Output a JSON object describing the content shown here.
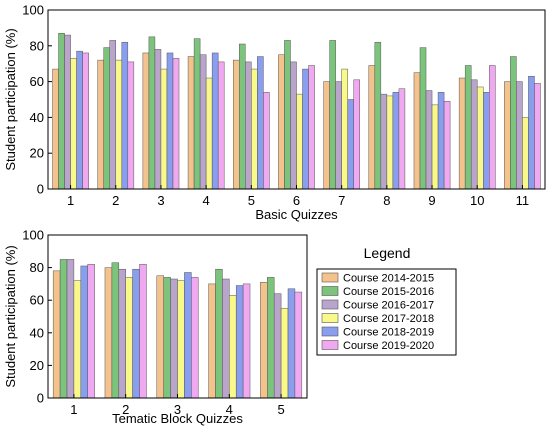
{
  "colors": [
    "#f4c28c",
    "#7cc47c",
    "#b9a4cc",
    "#f9f98a",
    "#8a9ef0",
    "#f0a8f0"
  ],
  "chart_data": [
    {
      "type": "bar",
      "xlabel": "Basic Quizzes",
      "ylabel": "Student participation (%)",
      "ylim": [
        0,
        100
      ],
      "yticks": [
        0,
        20,
        40,
        60,
        80,
        100
      ],
      "categories": [
        "1",
        "2",
        "3",
        "4",
        "5",
        "6",
        "7",
        "8",
        "9",
        "10",
        "11"
      ],
      "series": [
        {
          "name": "Course 2014-2015",
          "values": [
            67,
            72,
            76,
            74,
            72,
            75,
            60,
            69,
            65,
            62,
            60
          ]
        },
        {
          "name": "Course 2015-2016",
          "values": [
            87,
            79,
            85,
            84,
            81,
            83,
            83,
            82,
            79,
            69,
            74
          ]
        },
        {
          "name": "Course 2016-2017",
          "values": [
            86,
            83,
            78,
            75,
            71,
            71,
            60,
            53,
            55,
            61,
            60
          ]
        },
        {
          "name": "Course 2017-2018",
          "values": [
            73,
            72,
            67,
            62,
            67,
            53,
            67,
            52,
            47,
            57,
            40
          ]
        },
        {
          "name": "Course 2018-2019",
          "values": [
            77,
            82,
            76,
            76,
            74,
            67,
            50,
            54,
            54,
            54,
            63
          ]
        },
        {
          "name": "Course 2019-2020",
          "values": [
            76,
            71,
            73,
            71,
            54,
            69,
            61,
            56,
            49,
            69,
            59
          ]
        }
      ]
    },
    {
      "type": "bar",
      "xlabel": "Tematic Block Quizzes",
      "ylabel": "Student participation (%)",
      "ylim": [
        0,
        100
      ],
      "yticks": [
        0,
        20,
        40,
        60,
        80,
        100
      ],
      "categories": [
        "1",
        "2",
        "3",
        "4",
        "5"
      ],
      "series": [
        {
          "name": "Course 2014-2015",
          "values": [
            78,
            80,
            75,
            70,
            71
          ]
        },
        {
          "name": "Course 2015-2016",
          "values": [
            85,
            83,
            74,
            79,
            74
          ]
        },
        {
          "name": "Course 2016-2017",
          "values": [
            85,
            79,
            73,
            73,
            64
          ]
        },
        {
          "name": "Course 2017-2018",
          "values": [
            72,
            74,
            72,
            63,
            55
          ]
        },
        {
          "name": "Course 2018-2019",
          "values": [
            81,
            79,
            77,
            69,
            67
          ]
        },
        {
          "name": "Course 2019-2020",
          "values": [
            82,
            82,
            74,
            70,
            65
          ]
        }
      ]
    }
  ],
  "legend": {
    "title": "Legend",
    "items": [
      "Course 2014-2015",
      "Course 2015-2016",
      "Course 2016-2017",
      "Course 2017-2018",
      "Course 2018-2019",
      "Course 2019-2020"
    ]
  }
}
